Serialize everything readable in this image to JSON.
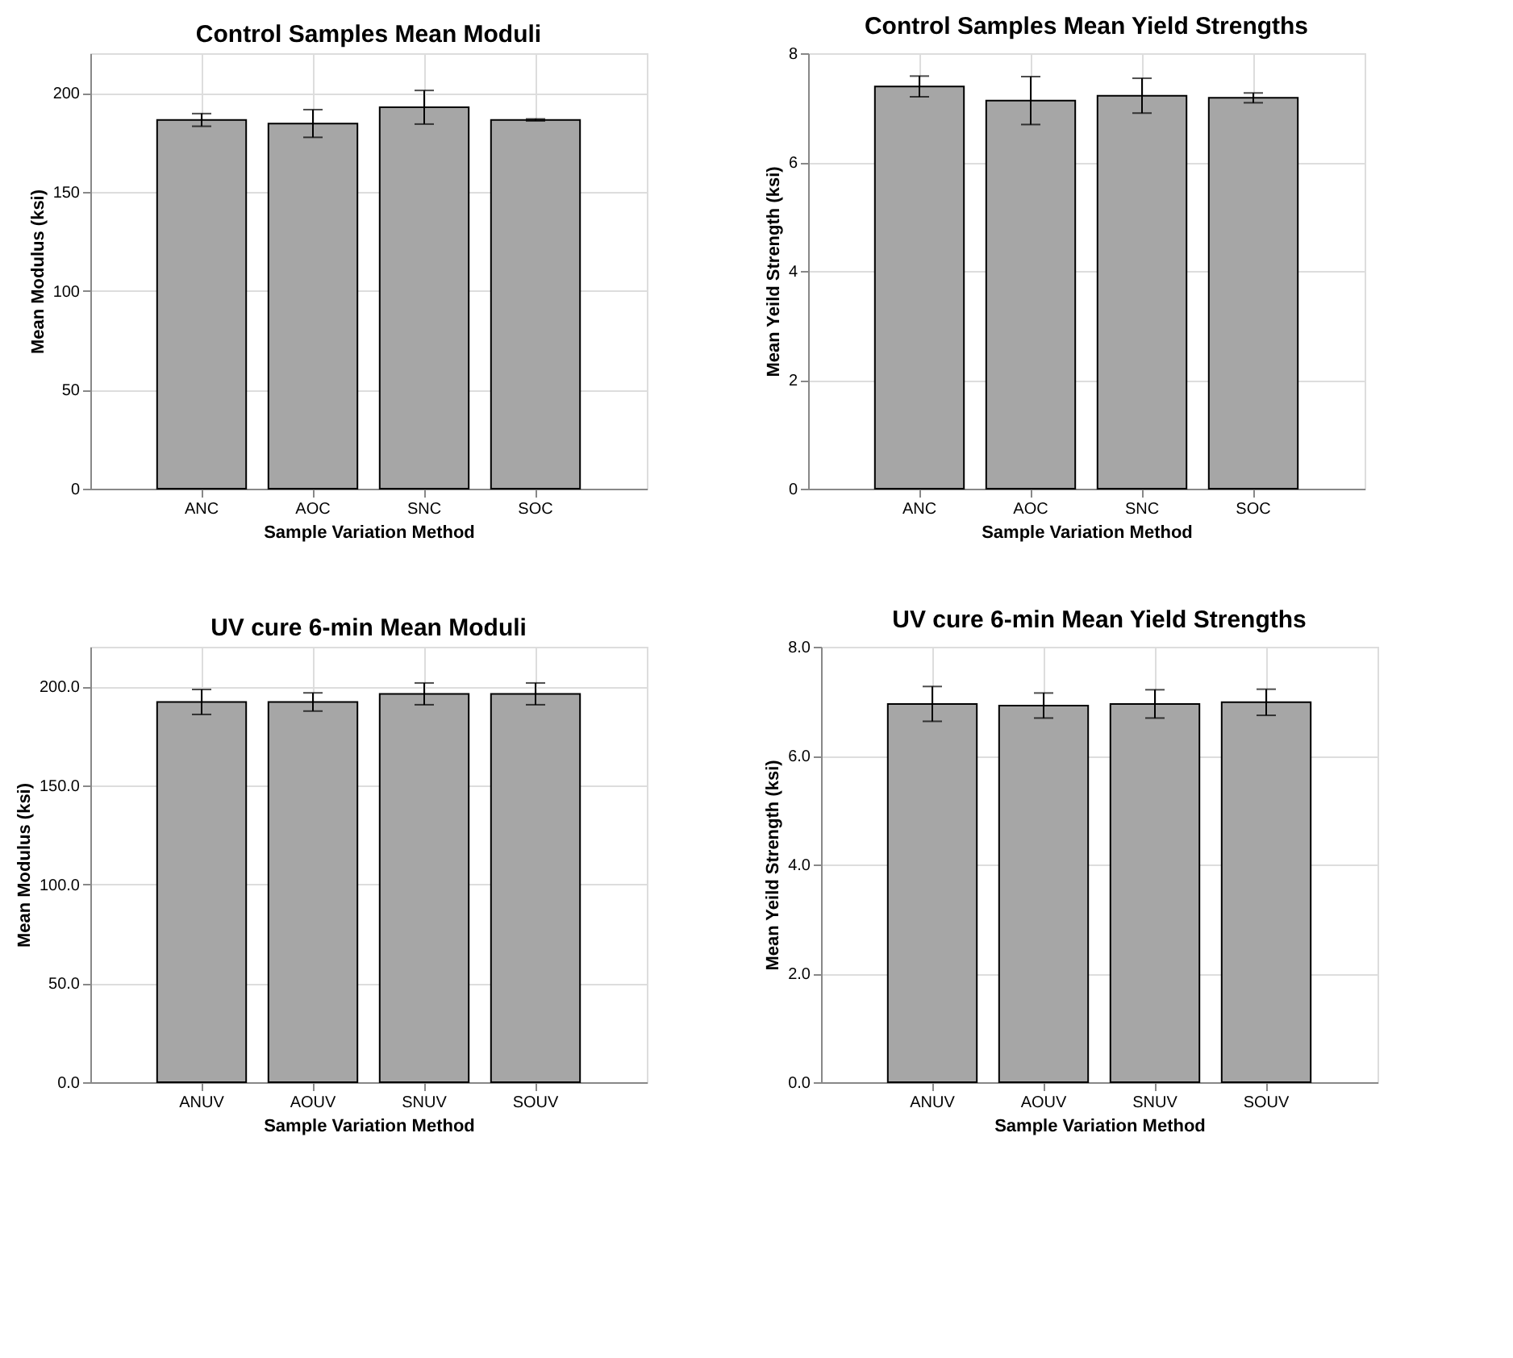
{
  "chart_data": [
    {
      "type": "bar",
      "title": "Control Samples Mean Moduli",
      "xlabel": "Sample Variation Method",
      "ylabel": "Mean Modulus (ksi)",
      "categories": [
        "ANC",
        "AOC",
        "SNC",
        "SOC"
      ],
      "values": [
        186.3,
        184.5,
        192.7,
        186.3
      ],
      "errors": [
        3.2,
        7,
        8.5,
        0.5
      ],
      "color": "#a6a6a6",
      "ylim": [
        0,
        220
      ],
      "yticks": [
        0,
        50,
        100,
        150,
        200
      ],
      "grid": true
    },
    {
      "type": "bar",
      "title": "Control Samples Mean Yield Strengths",
      "xlabel": "Sample Variation Method",
      "ylabel": "Mean Yeild Strength (ksi)",
      "categories": [
        "ANC",
        "AOC",
        "SNC",
        "SOC"
      ],
      "values": [
        7.39,
        7.13,
        7.22,
        7.18
      ],
      "errors": [
        0.19,
        0.44,
        0.32,
        0.09
      ],
      "color": "#a6a6a6",
      "ylim": [
        0,
        8
      ],
      "yticks": [
        0,
        2,
        4,
        6,
        8
      ],
      "grid": true
    },
    {
      "type": "bar",
      "title": "UV cure 6-min Mean Moduli",
      "xlabel": "Sample Variation Method",
      "ylabel": "Mean Modulus (ksi)",
      "categories": [
        "ANUV",
        "AOUV",
        "SNUV",
        "SOUV"
      ],
      "values": [
        192.1,
        192.1,
        196.2,
        196.2
      ],
      "errors": [
        6.3,
        4.6,
        5.5,
        5.5
      ],
      "color": "#a6a6a6",
      "ylim": [
        0,
        220
      ],
      "yticks": [
        {
          "value": 0,
          "label": "0.0"
        },
        {
          "value": 50,
          "label": "50.0"
        },
        {
          "value": 100,
          "label": "100.0"
        },
        {
          "value": 150,
          "label": "150.0"
        },
        {
          "value": 200,
          "label": "200.0"
        }
      ],
      "grid": true
    },
    {
      "type": "bar",
      "title": "UV cure 6-min Mean Yield Strengths",
      "xlabel": "Sample Variation Method",
      "ylabel": "Mean Yeild Strength (ksi)",
      "categories": [
        "ANUV",
        "AOUV",
        "SNUV",
        "SOUV"
      ],
      "values": [
        6.95,
        6.92,
        6.95,
        6.98
      ],
      "errors": [
        0.32,
        0.23,
        0.26,
        0.24
      ],
      "color": "#a6a6a6",
      "ylim": [
        0,
        8
      ],
      "yticks": [
        {
          "value": 0,
          "label": "0.0"
        },
        {
          "value": 2,
          "label": "2.0"
        },
        {
          "value": 4,
          "label": "4.0"
        },
        {
          "value": 6,
          "label": "6.0"
        },
        {
          "value": 8,
          "label": "8.0"
        }
      ],
      "grid": true
    }
  ]
}
